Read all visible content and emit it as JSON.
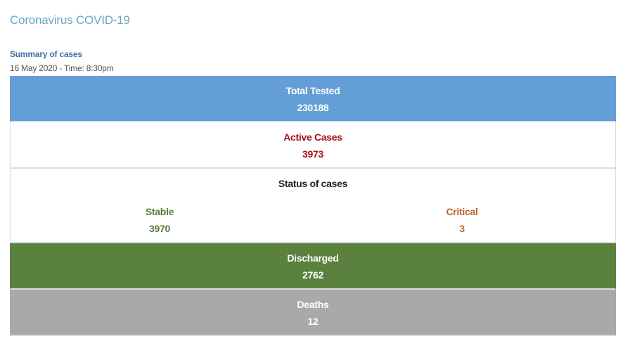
{
  "header": {
    "title": "Coronavirus COVID-19",
    "summary_heading": "Summary of cases",
    "timestamp": "16 May 2020 - Time: 8:30pm"
  },
  "summary": {
    "total_tested": {
      "label": "Total Tested",
      "value": "230188"
    },
    "active_cases": {
      "label": "Active Cases",
      "value": "3973"
    },
    "status": {
      "label": "Status of cases",
      "stable": {
        "label": "Stable",
        "value": "3970"
      },
      "critical": {
        "label": "Critical",
        "value": "3"
      }
    },
    "discharged": {
      "label": "Discharged",
      "value": "2762"
    },
    "deaths": {
      "label": "Deaths",
      "value": "12"
    }
  },
  "colors": {
    "title": "#6aa6c6",
    "summary_heading": "#3e6fa3",
    "tested_bg": "#639ed6",
    "active_text": "#a3121c",
    "stable_text": "#5a7d3c",
    "critical_text": "#c0642a",
    "discharged_bg": "#5a813d",
    "deaths_bg": "#a9a9a9"
  }
}
